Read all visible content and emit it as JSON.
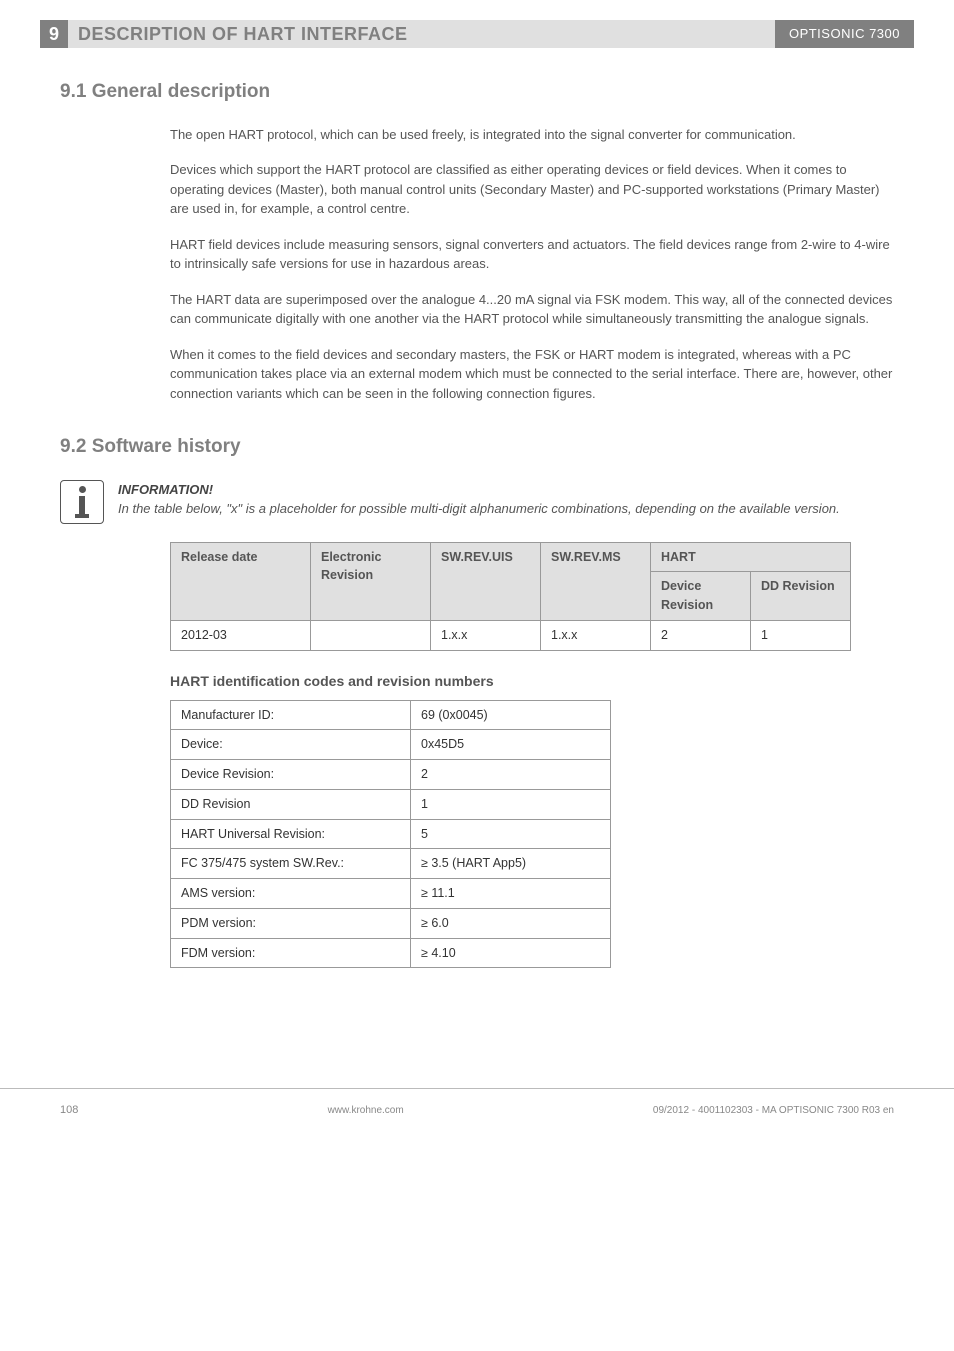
{
  "header": {
    "chapter_num": "9",
    "chapter_title": "DESCRIPTION OF HART INTERFACE",
    "product": "OPTISONIC 7300"
  },
  "section1": {
    "heading": "9.1  General description",
    "p1": "The open HART   protocol, which can be used freely, is integrated into the signal converter for communication.",
    "p2": "Devices which support the HART   protocol are classified as either operating devices or field devices. When it comes to operating devices (Master), both manual control units (Secondary Master) and PC-supported workstations (Primary Master) are used in, for example, a control centre.",
    "p3": "HART   field devices include measuring sensors, signal converters and actuators. The field devices range from 2-wire to 4-wire to intrinsically safe versions for use in hazardous areas.",
    "p4": "The HART   data are superimposed over the analogue 4...20 mA signal via FSK modem. This way, all of the connected devices can communicate digitally with one another via the HART   protocol while simultaneously transmitting the analogue signals.",
    "p5": "When it comes to the field devices and secondary masters, the FSK or HART    modem is integrated, whereas with a PC communication takes place via an external modem which must be connected to the serial interface. There are, however, other connection variants which can be seen in the following connection figures."
  },
  "section2": {
    "heading": "9.2  Software history",
    "info_title": "INFORMATION!",
    "info_body": "In the table below, \"x\" is a placeholder for possible multi-digit alphanumeric combinations, depending on the available version."
  },
  "history_table": {
    "h_release": "Release date",
    "h_elec": "Electronic Revision",
    "h_uis": "SW.REV.UIS",
    "h_ms": "SW.REV.MS",
    "h_hart": "HART",
    "h_devrev": "Device Revision",
    "h_ddrev": "DD Revision",
    "r1_release": "2012-03",
    "r1_elec": "",
    "r1_uis": "1.x.x",
    "r1_ms": "1.x.x",
    "r1_devrev": "2",
    "r1_ddrev": "1",
    "col_widths": {
      "release": 140,
      "elec": 120,
      "uis": 110,
      "ms": 110,
      "devrev": 100,
      "ddrev": 100
    }
  },
  "id_heading": "HART   identification codes and revision numbers",
  "id_table": {
    "rows": [
      [
        "Manufacturer ID:",
        "69 (0x0045)"
      ],
      [
        "Device:",
        "0x45D5"
      ],
      [
        "Device Revision:",
        "2"
      ],
      [
        "DD Revision",
        "1"
      ],
      [
        "HART   Universal Revision:",
        "5"
      ],
      [
        "FC 375/475 system SW.Rev.:",
        "≥ 3.5 (HART App5)"
      ],
      [
        "AMS version:",
        "≥ 11.1"
      ],
      [
        "PDM version:",
        "≥ 6.0"
      ],
      [
        "FDM version:",
        "≥ 4.10"
      ]
    ],
    "col_widths": {
      "label": 240,
      "value": 200
    }
  },
  "footer": {
    "page": "108",
    "url": "www.krohne.com",
    "doc": "09/2012 - 4001102303 - MA OPTISONIC 7300 R03 en"
  },
  "colors": {
    "header_dark": "#808080",
    "header_light": "#e0e0e0",
    "text_body": "#555555",
    "border": "#999999"
  }
}
